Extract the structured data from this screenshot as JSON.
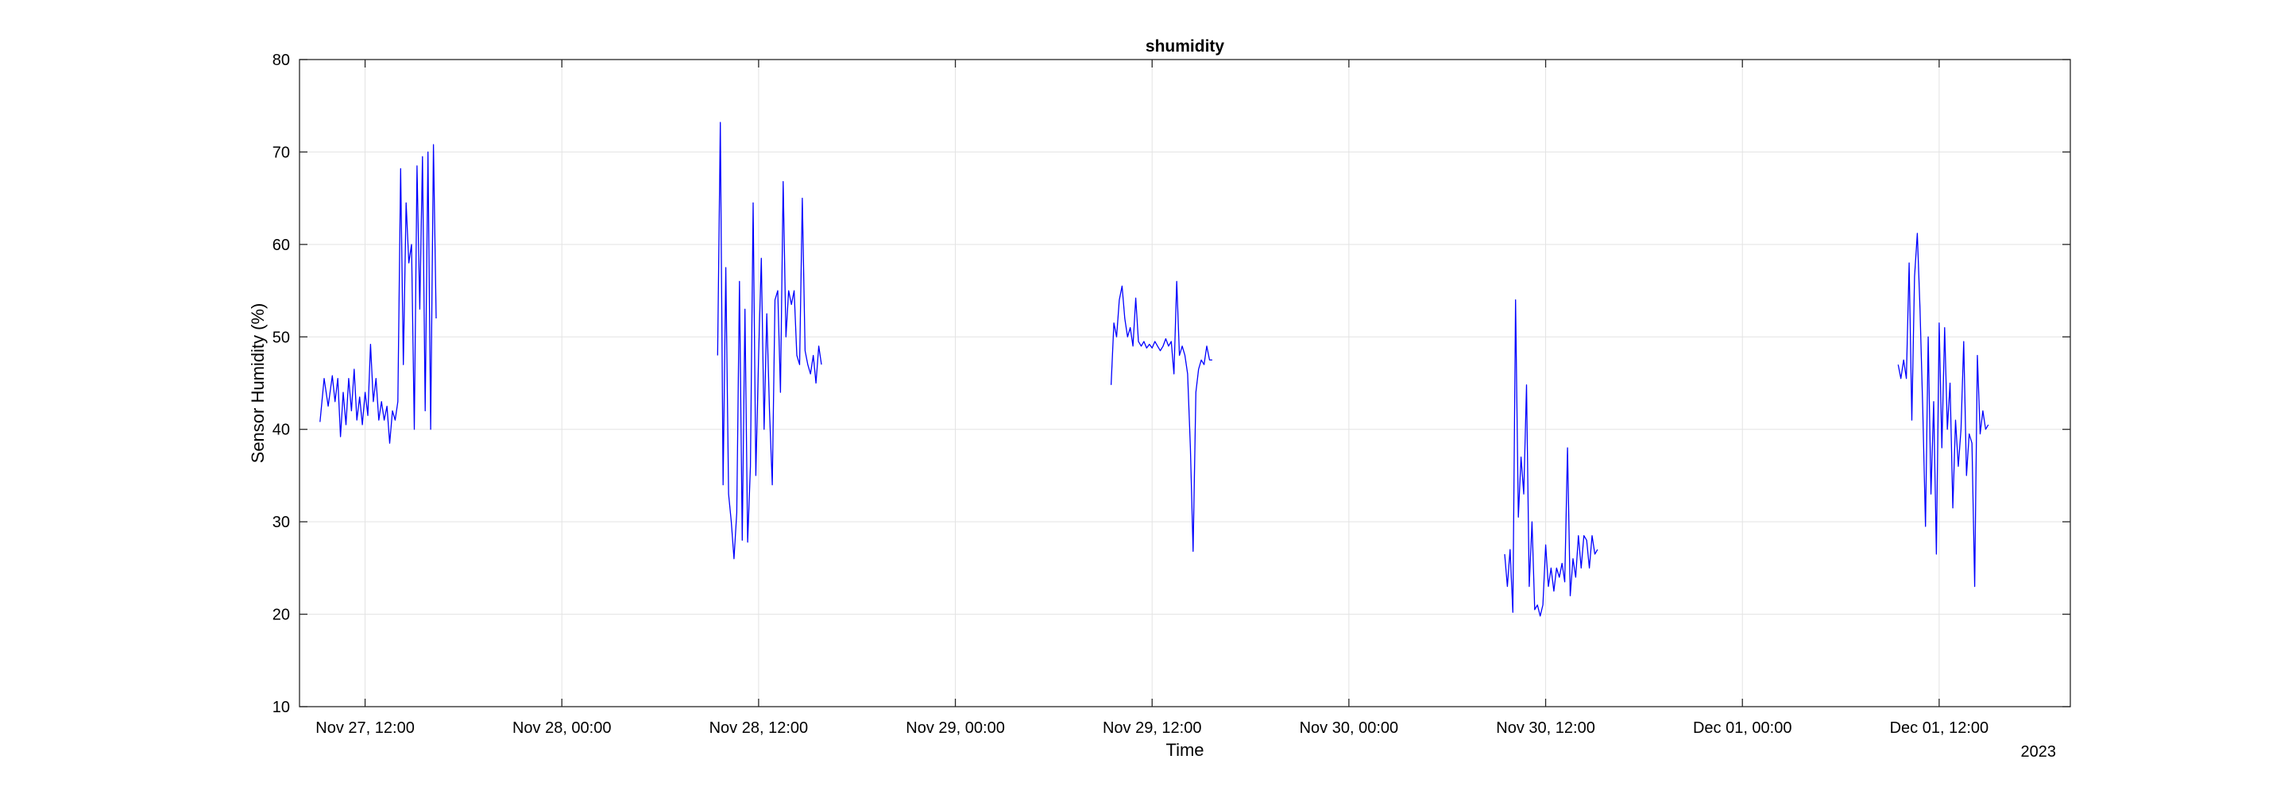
{
  "chart_data": {
    "type": "line",
    "title": "shumidity",
    "xlabel": "Time",
    "ylabel": "Sensor Humidity (%)",
    "x_secondary_label": "2023",
    "ylim": [
      10,
      80
    ],
    "xlim": [
      "2023-11-27 08:00",
      "2023-12-01 20:00"
    ],
    "yticks": [
      10,
      20,
      30,
      40,
      50,
      60,
      70,
      80
    ],
    "xticks": [
      {
        "t": "2023-11-27 12:00",
        "label": "Nov 27, 12:00"
      },
      {
        "t": "2023-11-28 00:00",
        "label": "Nov 28, 00:00"
      },
      {
        "t": "2023-11-28 12:00",
        "label": "Nov 28, 12:00"
      },
      {
        "t": "2023-11-29 00:00",
        "label": "Nov 29, 00:00"
      },
      {
        "t": "2023-11-29 12:00",
        "label": "Nov 29, 12:00"
      },
      {
        "t": "2023-11-30 00:00",
        "label": "Nov 30, 00:00"
      },
      {
        "t": "2023-11-30 12:00",
        "label": "Nov 30, 12:00"
      },
      {
        "t": "2023-12-01 00:00",
        "label": "Dec 01, 00:00"
      },
      {
        "t": "2023-12-01 12:00",
        "label": "Dec 01, 12:00"
      }
    ],
    "grid": true,
    "series_color": "#0000ff",
    "series": [
      {
        "segments": [
          [
            [
              "2023-11-27 09:15",
              40.8
            ],
            [
              "2023-11-27 09:30",
              45.5
            ],
            [
              "2023-11-27 09:45",
              42.5
            ],
            [
              "2023-11-27 10:00",
              45.8
            ],
            [
              "2023-11-27 10:10",
              43.0
            ],
            [
              "2023-11-27 10:20",
              45.5
            ],
            [
              "2023-11-27 10:30",
              39.2
            ],
            [
              "2023-11-27 10:40",
              44.0
            ],
            [
              "2023-11-27 10:50",
              40.5
            ],
            [
              "2023-11-27 11:00",
              45.5
            ],
            [
              "2023-11-27 11:10",
              42.0
            ],
            [
              "2023-11-27 11:20",
              46.5
            ],
            [
              "2023-11-27 11:30",
              41.0
            ],
            [
              "2023-11-27 11:40",
              43.5
            ],
            [
              "2023-11-27 11:50",
              40.5
            ],
            [
              "2023-11-27 12:00",
              44.0
            ],
            [
              "2023-11-27 12:10",
              41.5
            ],
            [
              "2023-11-27 12:20",
              49.2
            ],
            [
              "2023-11-27 12:30",
              43.0
            ],
            [
              "2023-11-27 12:40",
              45.5
            ],
            [
              "2023-11-27 12:50",
              41.0
            ],
            [
              "2023-11-27 13:00",
              43.0
            ],
            [
              "2023-11-27 13:10",
              41.0
            ],
            [
              "2023-11-27 13:20",
              42.5
            ],
            [
              "2023-11-27 13:30",
              38.5
            ],
            [
              "2023-11-27 13:40",
              42.0
            ],
            [
              "2023-11-27 13:50",
              41.0
            ],
            [
              "2023-11-27 14:00",
              43.0
            ],
            [
              "2023-11-27 14:10",
              68.2
            ],
            [
              "2023-11-27 14:20",
              47.0
            ],
            [
              "2023-11-27 14:30",
              64.5
            ],
            [
              "2023-11-27 14:40",
              58.0
            ],
            [
              "2023-11-27 14:50",
              60.0
            ],
            [
              "2023-11-27 15:00",
              40.0
            ],
            [
              "2023-11-27 15:10",
              68.5
            ],
            [
              "2023-11-27 15:20",
              53.0
            ],
            [
              "2023-11-27 15:30",
              69.5
            ],
            [
              "2023-11-27 15:40",
              42.0
            ],
            [
              "2023-11-27 15:50",
              70.0
            ],
            [
              "2023-11-27 16:00",
              40.0
            ],
            [
              "2023-11-27 16:10",
              70.8
            ],
            [
              "2023-11-27 16:20",
              52.0
            ]
          ]
        ]
      },
      {
        "segments": [
          [
            [
              "2023-11-28 09:30",
              48.0
            ],
            [
              "2023-11-28 09:40",
              73.2
            ],
            [
              "2023-11-28 09:50",
              34.0
            ],
            [
              "2023-11-28 10:00",
              57.5
            ],
            [
              "2023-11-28 10:10",
              33.0
            ],
            [
              "2023-11-28 10:20",
              30.0
            ],
            [
              "2023-11-28 10:30",
              26.0
            ],
            [
              "2023-11-28 10:40",
              31.0
            ],
            [
              "2023-11-28 10:50",
              56.0
            ],
            [
              "2023-11-28 11:00",
              28.0
            ],
            [
              "2023-11-28 11:10",
              53.0
            ],
            [
              "2023-11-28 11:20",
              27.8
            ],
            [
              "2023-11-28 11:30",
              36.0
            ],
            [
              "2023-11-28 11:40",
              64.5
            ],
            [
              "2023-11-28 11:50",
              35.0
            ],
            [
              "2023-11-28 12:00",
              48.0
            ],
            [
              "2023-11-28 12:10",
              58.5
            ],
            [
              "2023-11-28 12:20",
              40.0
            ],
            [
              "2023-11-28 12:30",
              52.5
            ],
            [
              "2023-11-28 12:40",
              42.0
            ],
            [
              "2023-11-28 12:50",
              34.0
            ],
            [
              "2023-11-28 13:00",
              54.0
            ],
            [
              "2023-11-28 13:10",
              55.0
            ],
            [
              "2023-11-28 13:20",
              44.0
            ],
            [
              "2023-11-28 13:30",
              66.8
            ],
            [
              "2023-11-28 13:40",
              50.0
            ],
            [
              "2023-11-28 13:50",
              55.0
            ],
            [
              "2023-11-28 14:00",
              53.5
            ],
            [
              "2023-11-28 14:10",
              55.0
            ],
            [
              "2023-11-28 14:20",
              48.0
            ],
            [
              "2023-11-28 14:30",
              47.0
            ],
            [
              "2023-11-28 14:40",
              65.0
            ],
            [
              "2023-11-28 14:50",
              48.5
            ],
            [
              "2023-11-28 15:00",
              47.0
            ],
            [
              "2023-11-28 15:10",
              46.0
            ],
            [
              "2023-11-28 15:20",
              48.0
            ],
            [
              "2023-11-28 15:30",
              45.0
            ],
            [
              "2023-11-28 15:40",
              49.0
            ],
            [
              "2023-11-28 15:50",
              47.0
            ]
          ]
        ]
      },
      {
        "segments": [
          [
            [
              "2023-11-29 09:30",
              44.8
            ],
            [
              "2023-11-29 09:40",
              51.5
            ],
            [
              "2023-11-29 09:50",
              50.0
            ],
            [
              "2023-11-29 10:00",
              54.0
            ],
            [
              "2023-11-29 10:10",
              55.5
            ],
            [
              "2023-11-29 10:20",
              52.0
            ],
            [
              "2023-11-29 10:30",
              50.0
            ],
            [
              "2023-11-29 10:40",
              51.0
            ],
            [
              "2023-11-29 10:50",
              49.0
            ],
            [
              "2023-11-29 11:00",
              54.2
            ],
            [
              "2023-11-29 11:10",
              49.5
            ],
            [
              "2023-11-29 11:20",
              49.0
            ],
            [
              "2023-11-29 11:30",
              49.5
            ],
            [
              "2023-11-29 11:40",
              48.8
            ],
            [
              "2023-11-29 11:50",
              49.2
            ],
            [
              "2023-11-29 12:00",
              48.8
            ],
            [
              "2023-11-29 12:10",
              49.5
            ],
            [
              "2023-11-29 12:20",
              49.0
            ],
            [
              "2023-11-29 12:30",
              48.5
            ],
            [
              "2023-11-29 12:40",
              49.0
            ],
            [
              "2023-11-29 12:50",
              49.8
            ],
            [
              "2023-11-29 13:00",
              49.0
            ],
            [
              "2023-11-29 13:10",
              49.5
            ],
            [
              "2023-11-29 13:20",
              46.0
            ],
            [
              "2023-11-29 13:30",
              56.0
            ],
            [
              "2023-11-29 13:40",
              48.0
            ],
            [
              "2023-11-29 13:50",
              49.0
            ],
            [
              "2023-11-29 14:00",
              48.0
            ],
            [
              "2023-11-29 14:10",
              46.0
            ],
            [
              "2023-11-29 14:20",
              38.0
            ],
            [
              "2023-11-29 14:30",
              26.8
            ],
            [
              "2023-11-29 14:40",
              44.0
            ],
            [
              "2023-11-29 14:50",
              46.5
            ],
            [
              "2023-11-29 15:00",
              47.5
            ],
            [
              "2023-11-29 15:10",
              47.0
            ],
            [
              "2023-11-29 15:20",
              49.0
            ],
            [
              "2023-11-29 15:30",
              47.5
            ],
            [
              "2023-11-29 15:40",
              47.5
            ]
          ]
        ]
      },
      {
        "segments": [
          [
            [
              "2023-11-30 09:30",
              26.5
            ],
            [
              "2023-11-30 09:40",
              23.0
            ],
            [
              "2023-11-30 09:50",
              27.0
            ],
            [
              "2023-11-30 10:00",
              20.2
            ],
            [
              "2023-11-30 10:10",
              54.0
            ],
            [
              "2023-11-30 10:20",
              30.5
            ],
            [
              "2023-11-30 10:30",
              37.0
            ],
            [
              "2023-11-30 10:40",
              33.0
            ],
            [
              "2023-11-30 10:50",
              44.8
            ],
            [
              "2023-11-30 11:00",
              23.0
            ],
            [
              "2023-11-30 11:10",
              30.0
            ],
            [
              "2023-11-30 11:20",
              20.5
            ],
            [
              "2023-11-30 11:30",
              21.0
            ],
            [
              "2023-11-30 11:40",
              19.8
            ],
            [
              "2023-11-30 11:50",
              21.0
            ],
            [
              "2023-11-30 12:00",
              27.5
            ],
            [
              "2023-11-30 12:10",
              23.0
            ],
            [
              "2023-11-30 12:20",
              25.0
            ],
            [
              "2023-11-30 12:30",
              22.5
            ],
            [
              "2023-11-30 12:40",
              25.0
            ],
            [
              "2023-11-30 12:50",
              24.0
            ],
            [
              "2023-11-30 13:00",
              25.5
            ],
            [
              "2023-11-30 13:10",
              23.5
            ],
            [
              "2023-11-30 13:20",
              38.0
            ],
            [
              "2023-11-30 13:30",
              22.0
            ],
            [
              "2023-11-30 13:40",
              26.0
            ],
            [
              "2023-11-30 13:50",
              24.0
            ],
            [
              "2023-11-30 14:00",
              28.5
            ],
            [
              "2023-11-30 14:10",
              25.0
            ],
            [
              "2023-11-30 14:20",
              28.5
            ],
            [
              "2023-11-30 14:30",
              28.0
            ],
            [
              "2023-11-30 14:40",
              25.0
            ],
            [
              "2023-11-30 14:50",
              28.5
            ],
            [
              "2023-11-30 15:00",
              26.5
            ],
            [
              "2023-11-30 15:10",
              27.0
            ]
          ]
        ]
      },
      {
        "segments": [
          [
            [
              "2023-12-01 09:30",
              47.0
            ],
            [
              "2023-12-01 09:40",
              45.5
            ],
            [
              "2023-12-01 09:50",
              47.5
            ],
            [
              "2023-12-01 10:00",
              45.5
            ],
            [
              "2023-12-01 10:10",
              58.0
            ],
            [
              "2023-12-01 10:20",
              41.0
            ],
            [
              "2023-12-01 10:30",
              56.5
            ],
            [
              "2023-12-01 10:40",
              61.2
            ],
            [
              "2023-12-01 10:50",
              53.0
            ],
            [
              "2023-12-01 11:00",
              42.0
            ],
            [
              "2023-12-01 11:10",
              29.5
            ],
            [
              "2023-12-01 11:20",
              50.0
            ],
            [
              "2023-12-01 11:30",
              33.0
            ],
            [
              "2023-12-01 11:40",
              43.0
            ],
            [
              "2023-12-01 11:50",
              26.5
            ],
            [
              "2023-12-01 12:00",
              51.5
            ],
            [
              "2023-12-01 12:10",
              38.0
            ],
            [
              "2023-12-01 12:20",
              51.0
            ],
            [
              "2023-12-01 12:30",
              40.0
            ],
            [
              "2023-12-01 12:40",
              45.0
            ],
            [
              "2023-12-01 12:50",
              31.5
            ],
            [
              "2023-12-01 13:00",
              41.0
            ],
            [
              "2023-12-01 13:10",
              36.0
            ],
            [
              "2023-12-01 13:20",
              40.0
            ],
            [
              "2023-12-01 13:30",
              49.5
            ],
            [
              "2023-12-01 13:40",
              35.0
            ],
            [
              "2023-12-01 13:50",
              39.5
            ],
            [
              "2023-12-01 14:00",
              38.5
            ],
            [
              "2023-12-01 14:10",
              23.0
            ],
            [
              "2023-12-01 14:20",
              48.0
            ],
            [
              "2023-12-01 14:30",
              39.5
            ],
            [
              "2023-12-01 14:40",
              42.0
            ],
            [
              "2023-12-01 14:50",
              40.0
            ],
            [
              "2023-12-01 15:00",
              40.5
            ]
          ]
        ]
      }
    ]
  }
}
